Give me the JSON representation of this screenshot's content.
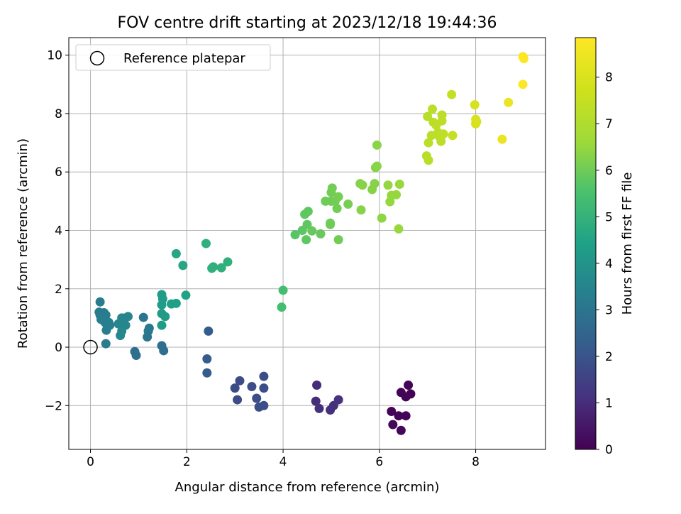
{
  "chart_data": {
    "type": "scatter",
    "title": "FOV centre drift starting at 2023/12/18 19:44:36",
    "xlabel": "Angular distance from reference (arcmin)",
    "ylabel": "Rotation from reference (arcmin)",
    "xlim": [
      -0.45,
      9.45
    ],
    "ylim": [
      -3.5,
      10.6
    ],
    "xticks": [
      0,
      2,
      4,
      6,
      8
    ],
    "yticks": [
      -2,
      0,
      2,
      4,
      6,
      8,
      10
    ],
    "grid": true,
    "legend": {
      "location": "upper-left",
      "entries": [
        "Reference platepar"
      ]
    },
    "reference": {
      "x": 0,
      "y": 0
    },
    "colorbar": {
      "label": "Hours from first FF file",
      "min": 0,
      "max": 8.85,
      "ticks": [
        0,
        1,
        2,
        3,
        4,
        5,
        6,
        7,
        8
      ],
      "colormap": "viridis"
    },
    "points": [
      {
        "x": 6.6,
        "y": -1.3,
        "c": 0.05
      },
      {
        "x": 6.45,
        "y": -1.55,
        "c": 0.05
      },
      {
        "x": 6.65,
        "y": -1.6,
        "c": 0.05
      },
      {
        "x": 6.55,
        "y": -1.7,
        "c": 0.1
      },
      {
        "x": 6.25,
        "y": -2.2,
        "c": 0.1
      },
      {
        "x": 6.4,
        "y": -2.35,
        "c": 0.1
      },
      {
        "x": 6.55,
        "y": -2.35,
        "c": 0.1
      },
      {
        "x": 6.28,
        "y": -2.65,
        "c": 0.15
      },
      {
        "x": 6.45,
        "y": -2.85,
        "c": 0.15
      },
      {
        "x": 4.7,
        "y": -1.3,
        "c": 1.0
      },
      {
        "x": 4.68,
        "y": -1.85,
        "c": 1.0
      },
      {
        "x": 4.75,
        "y": -2.1,
        "c": 1.05
      },
      {
        "x": 5.05,
        "y": -2.0,
        "c": 1.05
      },
      {
        "x": 4.98,
        "y": -2.15,
        "c": 1.05
      },
      {
        "x": 5.15,
        "y": -1.8,
        "c": 1.1
      },
      {
        "x": 3.1,
        "y": -1.15,
        "c": 1.8
      },
      {
        "x": 3.0,
        "y": -1.4,
        "c": 1.8
      },
      {
        "x": 3.05,
        "y": -1.8,
        "c": 1.8
      },
      {
        "x": 3.35,
        "y": -1.35,
        "c": 1.85
      },
      {
        "x": 3.45,
        "y": -1.75,
        "c": 1.85
      },
      {
        "x": 3.5,
        "y": -2.05,
        "c": 1.85
      },
      {
        "x": 3.6,
        "y": -1.0,
        "c": 1.85
      },
      {
        "x": 3.6,
        "y": -1.4,
        "c": 1.85
      },
      {
        "x": 3.6,
        "y": -2.0,
        "c": 1.85
      },
      {
        "x": 2.45,
        "y": 0.55,
        "c": 2.2
      },
      {
        "x": 2.42,
        "y": -0.4,
        "c": 2.2
      },
      {
        "x": 2.42,
        "y": -0.88,
        "c": 2.2
      },
      {
        "x": 0.92,
        "y": -0.15,
        "c": 2.85
      },
      {
        "x": 0.95,
        "y": -0.28,
        "c": 2.85
      },
      {
        "x": 1.48,
        "y": 0.05,
        "c": 2.8
      },
      {
        "x": 1.52,
        "y": -0.12,
        "c": 2.8
      },
      {
        "x": 1.18,
        "y": 0.35,
        "c": 3.0
      },
      {
        "x": 1.2,
        "y": 0.55,
        "c": 3.1
      },
      {
        "x": 1.22,
        "y": 0.65,
        "c": 3.1
      },
      {
        "x": 1.1,
        "y": 1.02,
        "c": 3.0
      },
      {
        "x": 0.32,
        "y": 0.12,
        "c": 3.2
      },
      {
        "x": 0.2,
        "y": 1.55,
        "c": 3.2
      },
      {
        "x": 0.18,
        "y": 1.2,
        "c": 3.2
      },
      {
        "x": 0.2,
        "y": 1.1,
        "c": 3.2
      },
      {
        "x": 0.28,
        "y": 1.18,
        "c": 3.2
      },
      {
        "x": 0.32,
        "y": 1.1,
        "c": 3.2
      },
      {
        "x": 0.22,
        "y": 0.95,
        "c": 3.3
      },
      {
        "x": 0.3,
        "y": 0.85,
        "c": 3.3
      },
      {
        "x": 0.38,
        "y": 0.85,
        "c": 3.3
      },
      {
        "x": 0.35,
        "y": 0.7,
        "c": 3.3
      },
      {
        "x": 0.4,
        "y": 0.75,
        "c": 3.3
      },
      {
        "x": 0.33,
        "y": 0.58,
        "c": 3.3
      },
      {
        "x": 0.58,
        "y": 0.8,
        "c": 3.5
      },
      {
        "x": 0.65,
        "y": 1.0,
        "c": 3.5
      },
      {
        "x": 0.72,
        "y": 1.0,
        "c": 3.5
      },
      {
        "x": 0.78,
        "y": 1.05,
        "c": 3.5
      },
      {
        "x": 0.68,
        "y": 0.85,
        "c": 3.5
      },
      {
        "x": 0.73,
        "y": 0.75,
        "c": 3.5
      },
      {
        "x": 0.65,
        "y": 0.55,
        "c": 3.6
      },
      {
        "x": 0.62,
        "y": 0.4,
        "c": 3.6
      },
      {
        "x": 1.48,
        "y": 0.75,
        "c": 4.3
      },
      {
        "x": 1.48,
        "y": 1.15,
        "c": 4.2
      },
      {
        "x": 1.55,
        "y": 1.05,
        "c": 4.2
      },
      {
        "x": 1.48,
        "y": 1.45,
        "c": 4.3
      },
      {
        "x": 1.48,
        "y": 1.8,
        "c": 4.3
      },
      {
        "x": 1.5,
        "y": 1.65,
        "c": 4.3
      },
      {
        "x": 1.68,
        "y": 1.48,
        "c": 4.4
      },
      {
        "x": 1.78,
        "y": 1.5,
        "c": 4.4
      },
      {
        "x": 1.98,
        "y": 1.78,
        "c": 4.5
      },
      {
        "x": 1.78,
        "y": 3.2,
        "c": 4.6
      },
      {
        "x": 1.92,
        "y": 2.8,
        "c": 4.6
      },
      {
        "x": 2.4,
        "y": 3.55,
        "c": 4.9
      },
      {
        "x": 2.55,
        "y": 2.75,
        "c": 4.9
      },
      {
        "x": 2.52,
        "y": 2.7,
        "c": 4.9
      },
      {
        "x": 2.72,
        "y": 2.72,
        "c": 4.9
      },
      {
        "x": 2.85,
        "y": 2.92,
        "c": 4.9
      },
      {
        "x": 3.97,
        "y": 1.37,
        "c": 5.4
      },
      {
        "x": 4.0,
        "y": 1.95,
        "c": 5.4
      },
      {
        "x": 4.25,
        "y": 3.85,
        "c": 5.7
      },
      {
        "x": 4.4,
        "y": 4.0,
        "c": 5.75
      },
      {
        "x": 4.48,
        "y": 3.68,
        "c": 5.8
      },
      {
        "x": 4.5,
        "y": 4.2,
        "c": 5.8
      },
      {
        "x": 4.45,
        "y": 4.55,
        "c": 5.8
      },
      {
        "x": 4.52,
        "y": 4.65,
        "c": 5.8
      },
      {
        "x": 4.6,
        "y": 3.98,
        "c": 5.9
      },
      {
        "x": 4.78,
        "y": 3.88,
        "c": 5.9
      },
      {
        "x": 4.98,
        "y": 4.2,
        "c": 6.0
      },
      {
        "x": 4.98,
        "y": 4.25,
        "c": 6.0
      },
      {
        "x": 4.88,
        "y": 5.0,
        "c": 6.0
      },
      {
        "x": 5.0,
        "y": 5.0,
        "c": 6.0
      },
      {
        "x": 5.0,
        "y": 5.3,
        "c": 6.05
      },
      {
        "x": 5.02,
        "y": 5.45,
        "c": 6.05
      },
      {
        "x": 5.08,
        "y": 5.0,
        "c": 6.05
      },
      {
        "x": 5.12,
        "y": 4.75,
        "c": 6.05
      },
      {
        "x": 5.15,
        "y": 3.68,
        "c": 6.05
      },
      {
        "x": 5.15,
        "y": 5.15,
        "c": 6.1
      },
      {
        "x": 5.35,
        "y": 4.9,
        "c": 6.1
      },
      {
        "x": 5.6,
        "y": 5.6,
        "c": 6.3
      },
      {
        "x": 5.65,
        "y": 5.55,
        "c": 6.3
      },
      {
        "x": 5.62,
        "y": 4.7,
        "c": 6.3
      },
      {
        "x": 5.85,
        "y": 5.4,
        "c": 6.3
      },
      {
        "x": 5.9,
        "y": 5.6,
        "c": 6.3
      },
      {
        "x": 5.92,
        "y": 6.15,
        "c": 6.3
      },
      {
        "x": 5.95,
        "y": 6.2,
        "c": 6.35
      },
      {
        "x": 5.95,
        "y": 6.92,
        "c": 6.35
      },
      {
        "x": 6.05,
        "y": 4.42,
        "c": 6.4
      },
      {
        "x": 6.18,
        "y": 5.55,
        "c": 6.5
      },
      {
        "x": 6.22,
        "y": 4.98,
        "c": 6.5
      },
      {
        "x": 6.25,
        "y": 5.2,
        "c": 6.5
      },
      {
        "x": 6.35,
        "y": 5.22,
        "c": 6.5
      },
      {
        "x": 6.4,
        "y": 4.05,
        "c": 6.55
      },
      {
        "x": 6.42,
        "y": 5.58,
        "c": 6.55
      },
      {
        "x": 6.98,
        "y": 6.55,
        "c": 7.2
      },
      {
        "x": 7.02,
        "y": 6.4,
        "c": 7.2
      },
      {
        "x": 7.0,
        "y": 7.9,
        "c": 7.2
      },
      {
        "x": 7.02,
        "y": 7.0,
        "c": 7.25
      },
      {
        "x": 7.08,
        "y": 7.25,
        "c": 7.25
      },
      {
        "x": 7.1,
        "y": 8.15,
        "c": 7.25
      },
      {
        "x": 7.12,
        "y": 7.7,
        "c": 7.25
      },
      {
        "x": 7.18,
        "y": 7.6,
        "c": 7.3
      },
      {
        "x": 7.22,
        "y": 7.35,
        "c": 7.3
      },
      {
        "x": 7.25,
        "y": 7.2,
        "c": 7.3
      },
      {
        "x": 7.28,
        "y": 7.05,
        "c": 7.3
      },
      {
        "x": 7.3,
        "y": 7.75,
        "c": 7.3
      },
      {
        "x": 7.3,
        "y": 7.95,
        "c": 7.3
      },
      {
        "x": 7.33,
        "y": 7.3,
        "c": 7.35
      },
      {
        "x": 7.5,
        "y": 8.65,
        "c": 7.5
      },
      {
        "x": 7.52,
        "y": 7.25,
        "c": 7.5
      },
      {
        "x": 7.98,
        "y": 8.3,
        "c": 7.9
      },
      {
        "x": 8.0,
        "y": 7.8,
        "c": 7.95
      },
      {
        "x": 8.02,
        "y": 7.72,
        "c": 7.95
      },
      {
        "x": 8.0,
        "y": 7.65,
        "c": 7.95
      },
      {
        "x": 8.55,
        "y": 7.12,
        "c": 8.4
      },
      {
        "x": 8.68,
        "y": 8.38,
        "c": 8.4
      },
      {
        "x": 8.98,
        "y": 9.0,
        "c": 8.8
      },
      {
        "x": 8.98,
        "y": 9.95,
        "c": 8.85
      },
      {
        "x": 9.0,
        "y": 9.88,
        "c": 8.85
      }
    ]
  }
}
